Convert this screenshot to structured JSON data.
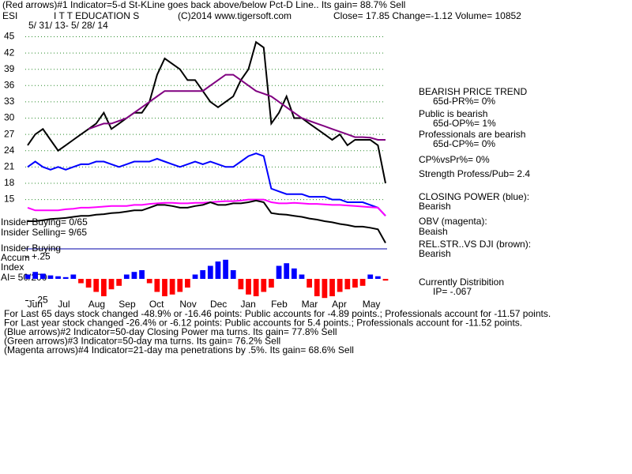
{
  "header": {
    "line1": "(Red arrows)#1 Indicator=5-d St-KLine goes back above/below Pct-D Line.. Its gain= 88.7% Sell",
    "symbol": "ESI",
    "name": "I T T EDUCATION S",
    "copyright": "(C)2014 www.tigersoft.com",
    "quote": "Close=  17.85  Change=-1.12 Volume= 10852",
    "dates": "5/ 31/ 13-  5/ 28/ 14"
  },
  "side": [
    "BEARISH PRICE TREND",
    "65d-PR%= 0%",
    "Public is bearish",
    "65d-OP%= 1%",
    "Professionals are bearish",
    "65d-CP%= 0%",
    "CP%vsPr%=  0%",
    "Strength Profess/Pub= 2.4",
    "CLOSING POWER (blue):",
    "Bearish",
    "OBV (magenta):",
    "Beaish",
    "REL.STR..VS DJI (brown):",
    "Bearish",
    "Currently Distribition",
    "IP= -.067"
  ],
  "left": [
    "Insider Buying= 0/65",
    "Insider Selling= 9/65",
    "Insider Buying",
    "Accum",
    "Index",
    "AI= 50/200"
  ],
  "notes": [
    "For Last 65 days stock changed -48.9% or -16.46 points:  Public accounts for -4.89 points.;  Professionals account for -11.57 points.",
    "For Last year stock changed -26.4% or -6.12 points:  Public accounts for  5.4 points.;  Professionals account for -11.52 points.",
    "(Blue arrows)#2 Indicator=50-day Closing Power ma turns. Its gain= 77.8% Sell",
    "(Green arrows)#3 Indicator=50-day ma turns. Its gain= 76.2% Sell",
    "(Magenta arrows)#4 Indicator=21-day ma penetrations by .5%. Its gain= 68.6% Sell"
  ],
  "chart_data": [
    {
      "type": "line",
      "categories": [
        null,
        "Jun",
        null,
        null,
        null,
        "Jul",
        null,
        null,
        null,
        "Aug",
        null,
        null,
        null,
        "Sep",
        null,
        null,
        null,
        "Oct",
        null,
        null,
        null,
        "Nov",
        null,
        null,
        null,
        "Dec",
        null,
        null,
        null,
        "Jan",
        null,
        null,
        null,
        "Feb",
        null,
        null,
        null,
        "Mar",
        null,
        null,
        null,
        "Apr",
        null,
        null,
        null,
        "May",
        null,
        null
      ],
      "ylim": [
        3,
        49
      ],
      "yticks": [
        15,
        18,
        21,
        24,
        27,
        30,
        33,
        36,
        39,
        42,
        45
      ],
      "grid": true,
      "series": [
        {
          "color": "#000000",
          "values": [
            25,
            27,
            28,
            26,
            24,
            25,
            26,
            27,
            28,
            29,
            31,
            28,
            29,
            30,
            31,
            31,
            33,
            38,
            41,
            40,
            39,
            37,
            37,
            35,
            33,
            32,
            33,
            34,
            37,
            39,
            44,
            43,
            29,
            31,
            34,
            30,
            30,
            29,
            28,
            27,
            26,
            27,
            25,
            26,
            26,
            26,
            25,
            18
          ]
        },
        {
          "color": "#800080",
          "values": [
            null,
            null,
            null,
            null,
            null,
            null,
            null,
            null,
            28,
            28.5,
            29,
            29,
            29.5,
            30,
            31,
            32,
            33,
            34,
            35,
            35,
            35,
            35,
            35,
            35,
            36,
            37,
            38,
            38,
            37,
            36,
            35,
            34.5,
            34,
            33,
            32,
            31,
            30,
            29.5,
            29,
            28.5,
            28,
            27.5,
            27,
            26.5,
            26.5,
            26.4,
            26,
            26
          ]
        },
        {
          "color": "#0000ff",
          "values": [
            21,
            22,
            21,
            20.5,
            21,
            20.5,
            21,
            21.5,
            21.5,
            22,
            22,
            21.5,
            21,
            21.5,
            22,
            22,
            22,
            22.5,
            22,
            21.5,
            21,
            21.5,
            22,
            21.5,
            22,
            21.5,
            21,
            21,
            22,
            23,
            23.5,
            23,
            17,
            16.5,
            16,
            16,
            16,
            15.5,
            15.5,
            15.5,
            15,
            15,
            14.5,
            14.5,
            14.5,
            14,
            13.5,
            12
          ]
        },
        {
          "color": "#ff00ff",
          "values": [
            13.5,
            13,
            13,
            13,
            13,
            13.2,
            13.3,
            13.5,
            13.5,
            13.6,
            13.7,
            13.8,
            13.8,
            13.8,
            14,
            14,
            14.2,
            14.3,
            14.4,
            14.4,
            14.3,
            14.3,
            14.4,
            14.4,
            14.5,
            14.6,
            14.7,
            14.7,
            14.8,
            15,
            15,
            15,
            14.5,
            14.3,
            14.3,
            14.4,
            14.3,
            14.2,
            14.2,
            14.1,
            14,
            14,
            13.9,
            13.8,
            13.7,
            13.6,
            13.5,
            12
          ]
        },
        {
          "color": "#000000",
          "values": [
            11,
            11,
            11.2,
            11.4,
            11.5,
            11.6,
            11.8,
            12,
            12,
            12.2,
            12.3,
            12.5,
            12.6,
            12.8,
            13,
            13,
            13.5,
            14,
            14,
            13.8,
            13.5,
            13.5,
            13.8,
            14,
            14.5,
            14,
            14,
            14.3,
            14.3,
            14.5,
            14.8,
            14.5,
            12.5,
            12.3,
            12.2,
            12,
            11.8,
            11.5,
            11.3,
            11,
            10.8,
            10.5,
            10.3,
            10,
            10,
            9.8,
            9.5,
            7
          ]
        }
      ]
    },
    {
      "type": "bar",
      "ylim": [
        -0.3,
        0.3
      ],
      "yticks": [
        {
          "value": -0.25,
          "label": "-.25"
        },
        {
          "value": 0.25,
          "label": "+.25"
        }
      ],
      "pos_color": "#0000ff",
      "neg_color": "#ff0000",
      "values": [
        0.05,
        0.08,
        0.06,
        0.04,
        0.03,
        0.02,
        0.05,
        -0.05,
        -0.1,
        -0.15,
        -0.2,
        -0.12,
        -0.08,
        0.05,
        0.08,
        0.1,
        -0.05,
        -0.15,
        -0.2,
        -0.18,
        -0.15,
        -0.1,
        0.05,
        0.1,
        0.15,
        0.2,
        0.22,
        0.1,
        -0.12,
        -0.18,
        -0.2,
        -0.15,
        -0.1,
        0.15,
        0.18,
        0.12,
        0.05,
        -0.1,
        -0.2,
        -0.22,
        -0.2,
        -0.15,
        -0.12,
        -0.1,
        -0.08,
        0.05,
        0.03,
        -0.02
      ]
    }
  ]
}
